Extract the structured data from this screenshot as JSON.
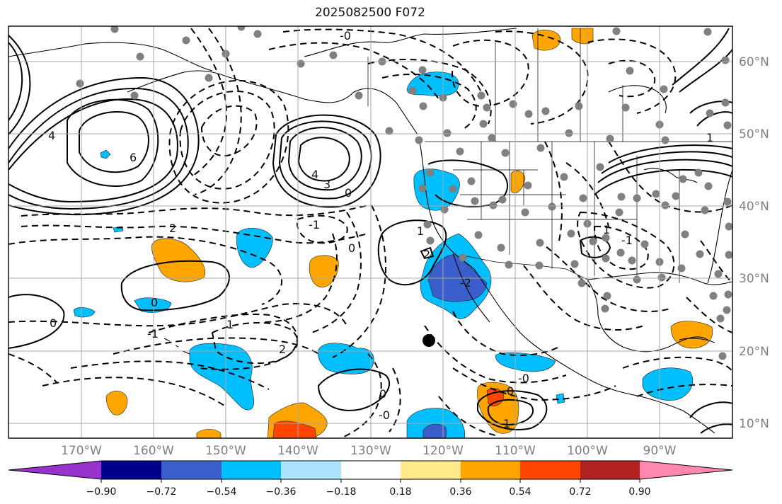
{
  "title": "2025082500 F072",
  "map": {
    "lon_ticks": [
      "170°W",
      "160°W",
      "150°W",
      "140°W",
      "130°W",
      "120°W",
      "110°W",
      "100°W",
      "90°W"
    ],
    "lat_ticks": [
      "60°N",
      "50°N",
      "40°N",
      "30°N",
      "20°N",
      "10°N"
    ],
    "contour_labels": [
      "-0",
      "4",
      "6",
      "4",
      "3",
      "0",
      "1",
      "2",
      "0",
      "-1",
      "0",
      "1",
      "2",
      "0",
      "-1",
      "-2",
      "0",
      "-0",
      "1",
      "1",
      "-0",
      "0",
      "2",
      "-1",
      "1"
    ]
  },
  "colorbar": {
    "tick_labels": [
      "−0.90",
      "−0.72",
      "−0.54",
      "−0.36",
      "−0.18",
      "0.18",
      "0.36",
      "0.54",
      "0.72",
      "0.90"
    ],
    "colors": [
      "#9932cc",
      "#00008b",
      "#3a5fcd",
      "#00bfff",
      "#aee3ff",
      "#ffffff",
      "#ffe98a",
      "#ffa500",
      "#ff4500",
      "#b22222",
      "#ff88b0"
    ]
  }
}
